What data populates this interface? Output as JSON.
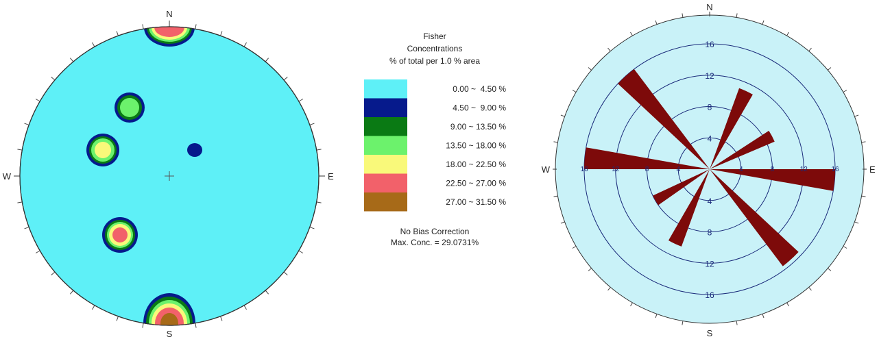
{
  "stereonet": {
    "directions": {
      "n": "N",
      "s": "S",
      "e": "E",
      "w": "W"
    },
    "center_marker": "+",
    "contour_groups": [
      {
        "position": "north-edge-upper",
        "levels": [
          "0.00 ~ 4.50 %",
          "4.50 ~ 9.00 %",
          "9.00 ~ 13.50 %",
          "13.50 ~ 18.00 %",
          "18.00 ~ 22.50 %",
          "22.50 ~ 27.00 %"
        ]
      },
      {
        "position": "north-west-upper",
        "levels": [
          "4.50 ~ 9.00 %",
          "9.00 ~ 13.50 %",
          "13.50 ~ 18.00 %"
        ]
      },
      {
        "position": "west-upper",
        "levels": [
          "4.50 ~ 9.00 %",
          "9.00 ~ 13.50 %",
          "13.50 ~ 18.00 %",
          "18.00 ~ 22.50 %"
        ]
      },
      {
        "position": "center-upper-right",
        "levels": [
          "4.50 ~ 9.00 %"
        ]
      },
      {
        "position": "west-lower",
        "levels": [
          "4.50 ~ 9.00 %",
          "9.00 ~ 13.50 %",
          "13.50 ~ 18.00 %",
          "18.00 ~ 22.50 %",
          "22.50 ~ 27.00 %"
        ]
      },
      {
        "position": "south-edge",
        "levels": [
          "4.50 ~ 9.00 %",
          "9.00 ~ 13.50 %",
          "13.50 ~ 18.00 %",
          "18.00 ~ 22.50 %",
          "22.50 ~ 27.00 %",
          "27.00 ~ 31.50 %"
        ]
      }
    ]
  },
  "legend": {
    "title_lines": [
      "Fisher",
      "Concentrations",
      "% of total per 1.0 % area"
    ],
    "bins": [
      {
        "label": "0.00 ~  4.50 %",
        "color": "#5EF0F7"
      },
      {
        "label": "4.50 ~  9.00 %",
        "color": "#061A8C"
      },
      {
        "label": "9.00 ~ 13.50 %",
        "color": "#0A7A14"
      },
      {
        "label": "13.50 ~ 18.00 %",
        "color": "#6CF26C"
      },
      {
        "label": "18.00 ~ 22.50 %",
        "color": "#F9F97A"
      },
      {
        "label": "22.50 ~ 27.00 %",
        "color": "#F2616A"
      },
      {
        "label": "27.00 ~ 31.50 %",
        "color": "#A76A18"
      }
    ],
    "footer_lines": [
      "No Bias Correction",
      "Max. Conc. = 29.0731%"
    ]
  },
  "chart_data": {
    "type": "rose",
    "directions": {
      "n": "N",
      "s": "S",
      "e": "E",
      "w": "W"
    },
    "ring_values": [
      4,
      8,
      12,
      16
    ],
    "r_max": 20,
    "ring_labels_vertical": [
      "16",
      "12",
      "8",
      "4",
      "4",
      "8",
      "12",
      "16"
    ],
    "ring_labels_horizontal": [
      "16",
      "12",
      "8",
      "4",
      "4",
      "8",
      "12",
      "16"
    ],
    "petal_color": "#7D0A0A",
    "face_color": "#C9F2F8",
    "bin_width_deg": 10,
    "petals": [
      {
        "azimuth_deg": 25,
        "value": 11
      },
      {
        "azimuth_deg": 62,
        "value": 9
      },
      {
        "azimuth_deg": 95,
        "value": 16
      },
      {
        "azimuth_deg": 138,
        "value": 15.5
      },
      {
        "azimuth_deg": 205,
        "value": 10.5
      },
      {
        "azimuth_deg": 240,
        "value": 8
      },
      {
        "azimuth_deg": 275,
        "value": 16
      },
      {
        "azimuth_deg": 318,
        "value": 16
      }
    ]
  }
}
